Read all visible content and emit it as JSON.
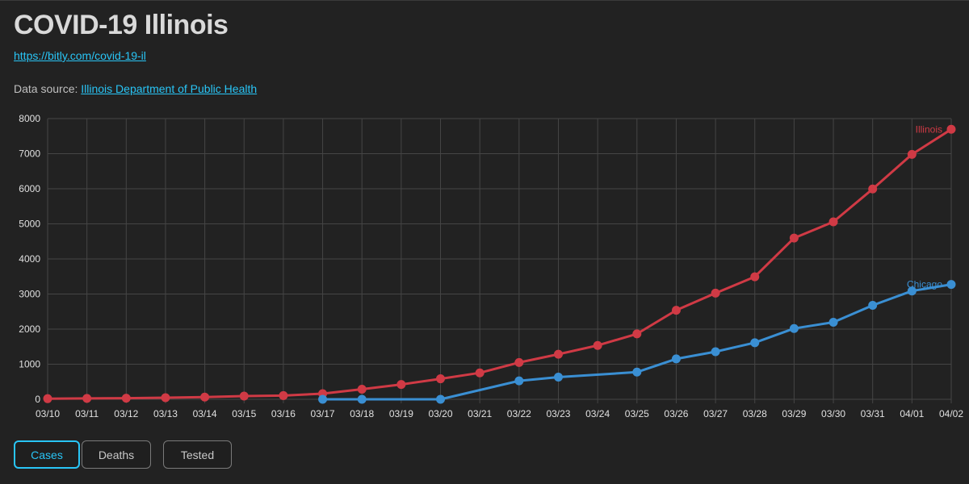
{
  "header": {
    "title": "COVID-19 Illinois",
    "short_link": "https://bitly.com/covid-19-il",
    "source_prefix": "Data source: ",
    "source_link": "Illinois Department of Public Health"
  },
  "tabs": [
    {
      "label": "Cases",
      "active": true
    },
    {
      "label": "Deaths",
      "active": false
    },
    {
      "label": "Tested",
      "active": false
    }
  ],
  "chart_data": {
    "type": "line",
    "x": [
      "03/10",
      "03/11",
      "03/12",
      "03/13",
      "03/14",
      "03/15",
      "03/16",
      "03/17",
      "03/18",
      "03/19",
      "03/20",
      "03/21",
      "03/22",
      "03/23",
      "03/24",
      "03/25",
      "03/26",
      "03/27",
      "03/28",
      "03/29",
      "03/30",
      "03/31",
      "04/01",
      "04/02"
    ],
    "ylim": [
      0,
      8000
    ],
    "yticks": [
      0,
      1000,
      2000,
      3000,
      4000,
      5000,
      6000,
      7000,
      8000
    ],
    "grid": true,
    "series": [
      {
        "name": "Illinois",
        "color": "#d03a45",
        "values": [
          19,
          25,
          32,
          46,
          64,
          93,
          105,
          160,
          288,
          422,
          585,
          753,
          1049,
          1285,
          1535,
          1865,
          2538,
          3026,
          3491,
          4596,
          5057,
          5994,
          6980,
          7695
        ],
        "markers": [
          true,
          true,
          true,
          true,
          true,
          true,
          true,
          true,
          true,
          true,
          true,
          true,
          true,
          true,
          true,
          true,
          true,
          true,
          true,
          true,
          true,
          true,
          true,
          true
        ]
      },
      {
        "name": "Chicago",
        "color": "#3a8fd3",
        "values": [
          null,
          null,
          null,
          null,
          null,
          null,
          null,
          0,
          0,
          null,
          0,
          null,
          526,
          632,
          null,
          775,
          1152,
          1357,
          1613,
          2018,
          2196,
          2678,
          3087,
          3273
        ],
        "markers": [
          false,
          false,
          false,
          false,
          false,
          false,
          false,
          true,
          true,
          false,
          true,
          false,
          true,
          true,
          false,
          true,
          true,
          true,
          true,
          true,
          true,
          true,
          true,
          true
        ]
      }
    ]
  }
}
